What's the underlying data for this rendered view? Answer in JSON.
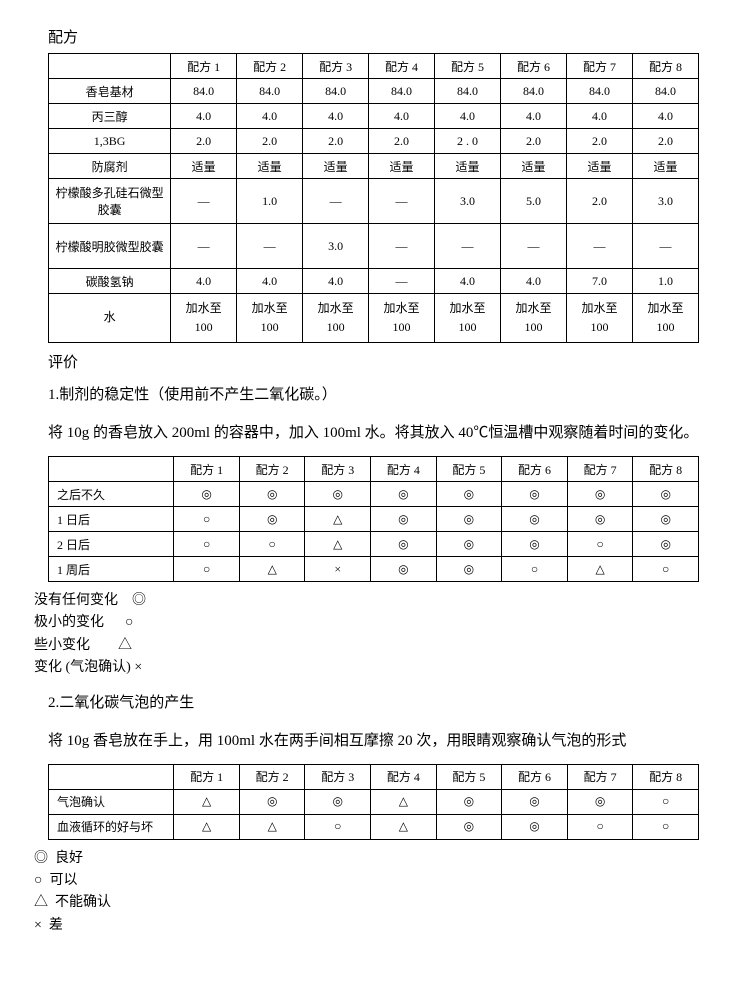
{
  "title1": "配方",
  "table1": {
    "headers": [
      "",
      "配方 1",
      "配方 2",
      "配方 3",
      "配方 4",
      "配方 5",
      "配方 6",
      "配方 7",
      "配方 8"
    ],
    "rows": [
      {
        "label": "香皂基材",
        "cells": [
          "84.0",
          "84.0",
          "84.0",
          "84.0",
          "84.0",
          "84.0",
          "84.0",
          "84.0"
        ],
        "tall": false
      },
      {
        "label": "丙三醇",
        "cells": [
          "4.0",
          "4.0",
          "4.0",
          "4.0",
          "4.0",
          "4.0",
          "4.0",
          "4.0"
        ],
        "tall": false
      },
      {
        "label": "1,3BG",
        "cells": [
          "2.0",
          "2.0",
          "2.0",
          "2.0",
          "2 . 0",
          "2.0",
          "2.0",
          "2.0"
        ],
        "tall": false
      },
      {
        "label": "防腐剂",
        "cells": [
          "适量",
          "适量",
          "适量",
          "适量",
          "适量",
          "适量",
          "适量",
          "适量"
        ],
        "tall": false
      },
      {
        "label": "柠檬酸多孔硅石微型胶囊",
        "cells": [
          "—",
          "1.0",
          "—",
          "—",
          "3.0",
          "5.0",
          "2.0",
          "3.0"
        ],
        "tall": true
      },
      {
        "label": "柠檬酸明胶微型胶囊",
        "cells": [
          "—",
          "—",
          "3.0",
          "—",
          "—",
          "—",
          "—",
          "—"
        ],
        "tall": true
      },
      {
        "label": "碳酸氢钠",
        "cells": [
          "4.0",
          "4.0",
          "4.0",
          "—",
          "4.0",
          "4.0",
          "7.0",
          "1.0"
        ],
        "tall": false
      },
      {
        "label": "水",
        "cells": [
          "加水至\n100",
          "加水至\n100",
          "加水至\n100",
          "加水至\n100",
          "加水至\n100",
          "加水至\n100",
          "加水至\n100",
          "加水至\n100"
        ],
        "water": true
      }
    ]
  },
  "title2": "评价",
  "para1": "1.制剂的稳定性（使用前不产生二氧化碳。）",
  "para2": "将 10g 的香皂放入 200ml 的容器中，加入 100ml 水。将其放入 40℃恒温槽中观察随着时间的变化。",
  "table2": {
    "headers": [
      "",
      "配方 1",
      "配方 2",
      "配方 3",
      "配方 4",
      "配方 5",
      "配方 6",
      "配方 7",
      "配方 8"
    ],
    "rows": [
      {
        "label": "之后不久",
        "cells": [
          "◎",
          "◎",
          "◎",
          "◎",
          "◎",
          "◎",
          "◎",
          "◎"
        ]
      },
      {
        "label": "1 日后",
        "cells": [
          "○",
          "◎",
          "△",
          "◎",
          "◎",
          "◎",
          "◎",
          "◎"
        ]
      },
      {
        "label": "2 日后",
        "cells": [
          "○",
          "○",
          "△",
          "◎",
          "◎",
          "◎",
          "○",
          "◎"
        ]
      },
      {
        "label": "1 周后",
        "cells": [
          "○",
          "△",
          "×",
          "◎",
          "◎",
          "○",
          "△",
          "○"
        ]
      }
    ]
  },
  "legend1": [
    "没有任何变化    ◎",
    "极小的变化      ○",
    "些小变化        △",
    "变化 (气泡确认) ×"
  ],
  "para3": "2.二氧化碳气泡的产生",
  "para4": "将 10g 香皂放在手上，用 100ml 水在两手间相互摩擦 20 次，用眼睛观察确认气泡的形式",
  "table3": {
    "headers": [
      "",
      "配方 1",
      "配方 2",
      "配方 3",
      "配方 4",
      "配方 5",
      "配方 6",
      "配方 7",
      "配方 8"
    ],
    "rows": [
      {
        "label": "气泡确认",
        "cells": [
          "△",
          "◎",
          "◎",
          "△",
          "◎",
          "◎",
          "◎",
          "○"
        ]
      },
      {
        "label": "血液循环的好与坏",
        "cells": [
          "△",
          "△",
          "○",
          "△",
          "◎",
          "◎",
          "○",
          "○"
        ]
      }
    ]
  },
  "legend2": [
    "◎  良好",
    "○  可以",
    "△  不能确认",
    "×  差"
  ]
}
